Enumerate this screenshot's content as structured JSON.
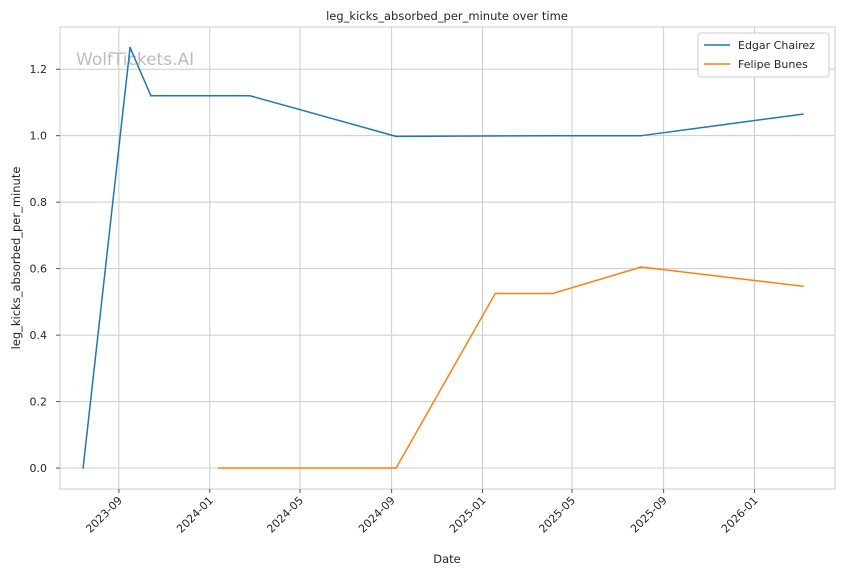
{
  "chart_data": {
    "type": "line",
    "title": "leg_kicks_absorbed_per_minute over time",
    "xlabel": "Date",
    "ylabel": "leg_kicks_absorbed_per_minute",
    "watermark": "WolfTickets.AI",
    "x_range": [
      "2023-06-14",
      "2026-04-19"
    ],
    "ylim": [
      -0.063,
      1.327
    ],
    "x_ticks": [
      "2023-09",
      "2024-01",
      "2024-05",
      "2024-09",
      "2025-01",
      "2025-05",
      "2025-09",
      "2026-01"
    ],
    "y_ticks": [
      "0.0",
      "0.2",
      "0.4",
      "0.6",
      "0.8",
      "1.0",
      "1.2"
    ],
    "grid": true,
    "legend_position": "top-right",
    "series": [
      {
        "name": "Edgar Chairez",
        "color": "#1f77b4",
        "x": [
          "2023-07-15",
          "2023-09-16",
          "2023-10-14",
          "2024-02-24",
          "2024-09-07",
          "2025-04-05",
          "2025-08-02",
          "2026-03-07"
        ],
        "y": [
          0.0,
          1.265,
          1.12,
          1.12,
          0.998,
          1.0,
          1.0,
          1.065
        ]
      },
      {
        "name": "Felipe Bunes",
        "color": "#ff7f0e",
        "x": [
          "2024-01-13",
          "2024-09-07",
          "2025-01-18",
          "2025-04-05",
          "2025-08-02",
          "2026-03-07"
        ],
        "y": [
          0.0,
          0.0,
          0.525,
          0.525,
          0.605,
          0.547
        ]
      }
    ]
  }
}
